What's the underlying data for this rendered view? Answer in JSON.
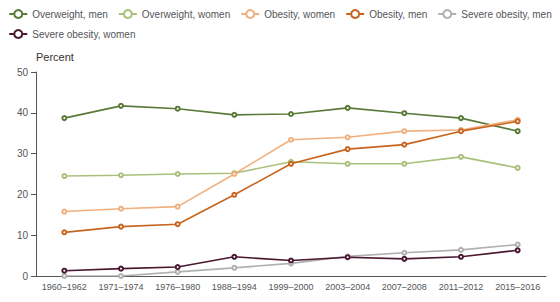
{
  "chart_data": {
    "type": "line",
    "ylabel": "Percent",
    "categories": [
      "1960–1962",
      "1971–1974",
      "1976–1980",
      "1988–1994",
      "1999–2000",
      "2003–2004",
      "2007–2008",
      "2011–2012",
      "2015–2016"
    ],
    "series": [
      {
        "name": "Overweight, men",
        "color": "#5a7a3a",
        "values": [
          38.7,
          41.7,
          41.0,
          39.5,
          39.7,
          41.2,
          39.9,
          38.7,
          35.5
        ]
      },
      {
        "name": "Overweight, women",
        "color": "#aac07a",
        "values": [
          24.5,
          24.7,
          25.0,
          25.2,
          28.0,
          27.5,
          27.5,
          29.2,
          26.5
        ]
      },
      {
        "name": "Obesity, women",
        "color": "#f0b080",
        "values": [
          15.8,
          16.5,
          17.0,
          25.0,
          33.4,
          34.0,
          35.5,
          35.8,
          38.3
        ]
      },
      {
        "name": "Obesity, men",
        "color": "#c86420",
        "values": [
          10.7,
          12.1,
          12.7,
          19.9,
          27.5,
          31.1,
          32.2,
          35.5,
          37.9
        ]
      },
      {
        "name": "Severe obesity, men",
        "color": "#b0b0b0",
        "values": [
          0.0,
          0.0,
          1.0,
          2.0,
          3.1,
          4.8,
          5.7,
          6.4,
          7.7
        ]
      },
      {
        "name": "Severe obesity, women",
        "color": "#4a1830",
        "values": [
          1.3,
          1.8,
          2.2,
          4.7,
          3.8,
          4.6,
          4.2,
          4.7,
          6.3
        ]
      }
    ],
    "ylim": [
      0,
      50
    ],
    "yticks": [
      0,
      10,
      20,
      30,
      40,
      50
    ],
    "grid": false,
    "legend": "top"
  }
}
